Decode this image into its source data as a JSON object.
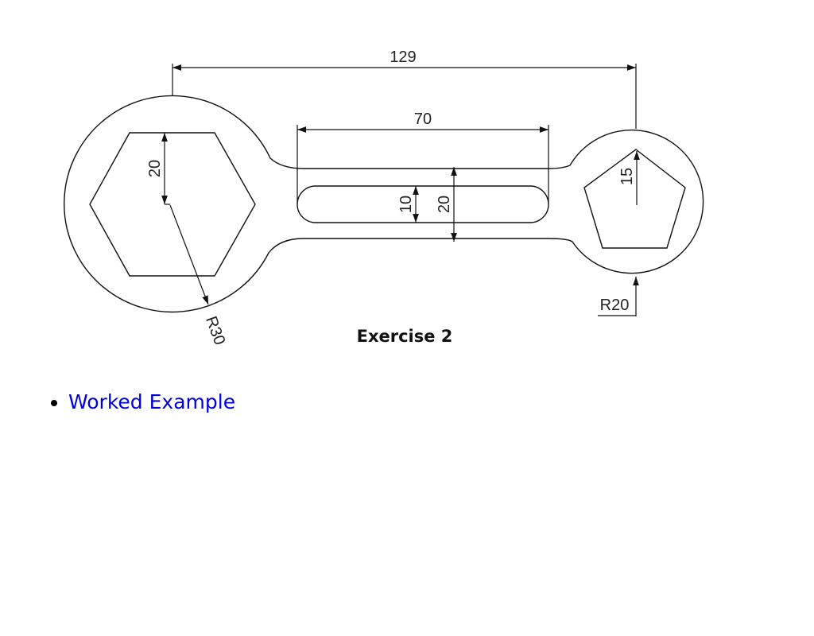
{
  "figure": {
    "dim_overall": "129",
    "dim_slot_length": "70",
    "dim_hex_half_height": "20",
    "dim_slot_width": "10",
    "dim_handle_width": "20",
    "dim_pentagon_radius": "15",
    "dim_large_radius": "R30",
    "dim_small_radius": "R20",
    "caption": "Exercise 2"
  },
  "links": [
    {
      "label": "Worked Example"
    }
  ]
}
